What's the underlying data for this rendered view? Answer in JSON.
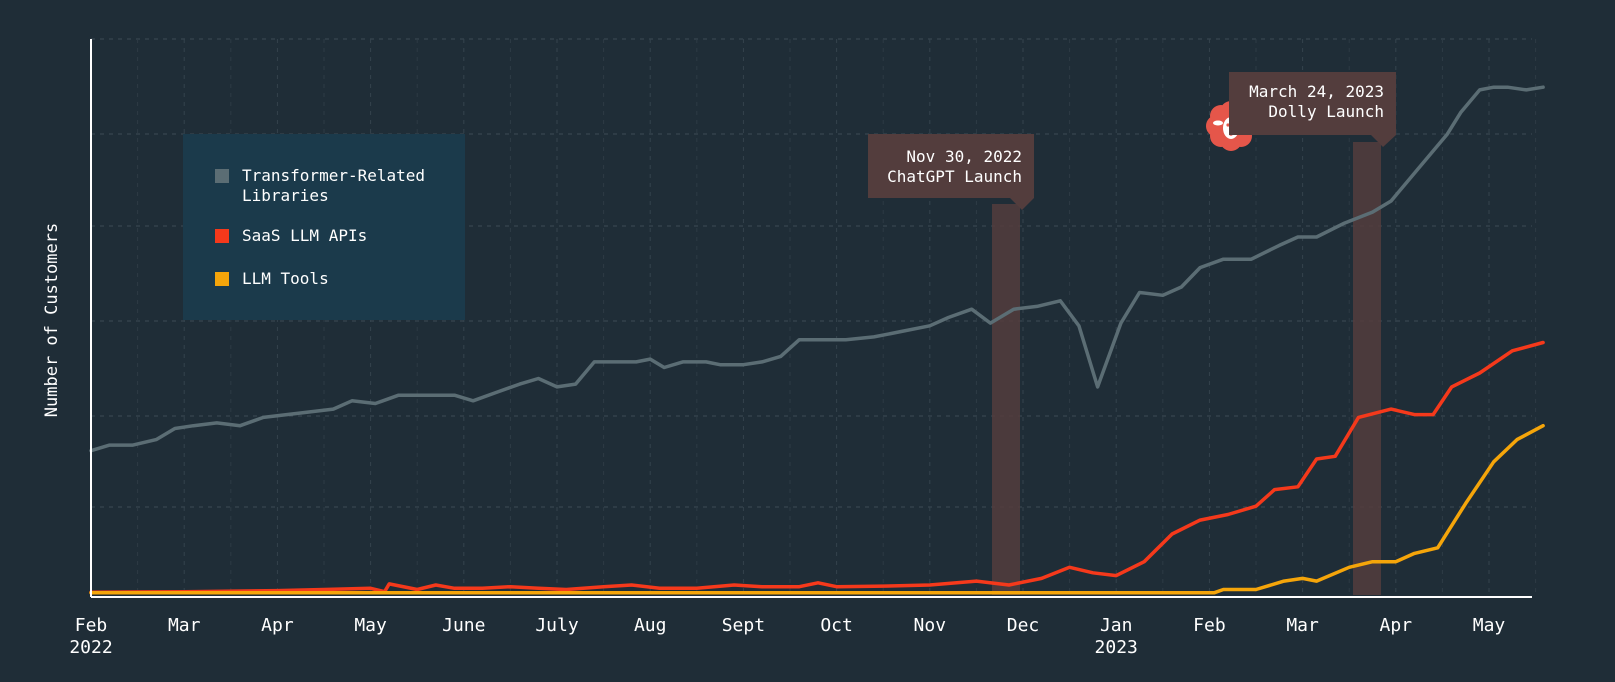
{
  "chart_data": {
    "type": "line",
    "ylabel": "Number of Customers",
    "xlabel": "",
    "x_ticks": [
      {
        "label": "Feb",
        "sub": "2022",
        "month": 0
      },
      {
        "label": "Mar",
        "sub": "",
        "month": 1
      },
      {
        "label": "Apr",
        "sub": "",
        "month": 2
      },
      {
        "label": "May",
        "sub": "",
        "month": 3
      },
      {
        "label": "June",
        "sub": "",
        "month": 4
      },
      {
        "label": "July",
        "sub": "",
        "month": 5
      },
      {
        "label": "Aug",
        "sub": "",
        "month": 6
      },
      {
        "label": "Sept",
        "sub": "",
        "month": 7
      },
      {
        "label": "Oct",
        "sub": "",
        "month": 8
      },
      {
        "label": "Nov",
        "sub": "",
        "month": 9
      },
      {
        "label": "Dec",
        "sub": "",
        "month": 10
      },
      {
        "label": "Jan",
        "sub": "2023",
        "month": 11
      },
      {
        "label": "Feb",
        "sub": "",
        "month": 12
      },
      {
        "label": "Mar",
        "sub": "",
        "month": 13
      },
      {
        "label": "Apr",
        "sub": "",
        "month": 14
      },
      {
        "label": "May",
        "sub": "",
        "month": 15
      }
    ],
    "x_range_months": [
      0,
      15.3
    ],
    "y_range": [
      0,
      100
    ],
    "grid": true,
    "legend_position": "top-left",
    "series": [
      {
        "name": "Transformer-Related Libraries",
        "color": "#5b6d74",
        "points": [
          [
            0,
            26
          ],
          [
            0.2,
            27
          ],
          [
            0.45,
            27
          ],
          [
            0.7,
            28
          ],
          [
            0.9,
            30
          ],
          [
            1.1,
            30.5
          ],
          [
            1.35,
            31
          ],
          [
            1.6,
            30.5
          ],
          [
            1.85,
            32
          ],
          [
            2.1,
            32.5
          ],
          [
            2.35,
            33
          ],
          [
            2.6,
            33.5
          ],
          [
            2.8,
            35
          ],
          [
            3.05,
            34.5
          ],
          [
            3.3,
            36
          ],
          [
            3.6,
            36
          ],
          [
            3.9,
            36
          ],
          [
            4.1,
            35
          ],
          [
            4.35,
            36.5
          ],
          [
            4.6,
            38
          ],
          [
            4.8,
            39
          ],
          [
            5.0,
            37.5
          ],
          [
            5.2,
            38
          ],
          [
            5.4,
            42
          ],
          [
            5.6,
            42
          ],
          [
            5.85,
            42
          ],
          [
            6.0,
            42.5
          ],
          [
            6.15,
            41
          ],
          [
            6.35,
            42
          ],
          [
            6.6,
            42
          ],
          [
            6.75,
            41.5
          ],
          [
            7.0,
            41.5
          ],
          [
            7.2,
            42
          ],
          [
            7.4,
            43
          ],
          [
            7.6,
            46
          ],
          [
            7.8,
            46
          ],
          [
            8.1,
            46
          ],
          [
            8.4,
            46.5
          ],
          [
            8.7,
            47.5
          ],
          [
            9.0,
            48.5
          ],
          [
            9.2,
            50
          ],
          [
            9.45,
            51.5
          ],
          [
            9.65,
            49
          ],
          [
            9.9,
            51.5
          ],
          [
            10.15,
            52
          ],
          [
            10.4,
            53
          ],
          [
            10.6,
            48.5
          ],
          [
            10.8,
            37.5
          ],
          [
            11.05,
            49
          ],
          [
            11.25,
            54.5
          ],
          [
            11.5,
            54
          ],
          [
            11.7,
            55.5
          ],
          [
            11.9,
            59
          ],
          [
            12.15,
            60.5
          ],
          [
            12.45,
            60.5
          ],
          [
            12.75,
            63
          ],
          [
            12.95,
            64.5
          ],
          [
            13.15,
            64.5
          ],
          [
            13.45,
            67
          ],
          [
            13.75,
            69
          ],
          [
            13.95,
            71
          ],
          [
            14.25,
            77
          ],
          [
            14.55,
            83
          ],
          [
            14.7,
            87
          ],
          [
            14.9,
            91
          ],
          [
            15.05,
            91.5
          ],
          [
            15.2,
            91.5
          ],
          [
            15.4,
            91
          ],
          [
            15.58,
            91.5
          ]
        ]
      },
      {
        "name": "SaaS LLM APIs",
        "color": "#f5391b",
        "points": [
          [
            0,
            0.5
          ],
          [
            1,
            0.6
          ],
          [
            2,
            0.8
          ],
          [
            2.5,
            1
          ],
          [
            3,
            1.2
          ],
          [
            3.15,
            0.6
          ],
          [
            3.2,
            2
          ],
          [
            3.5,
            1
          ],
          [
            3.7,
            1.8
          ],
          [
            3.9,
            1.2
          ],
          [
            4.2,
            1.2
          ],
          [
            4.5,
            1.5
          ],
          [
            4.8,
            1.2
          ],
          [
            5.1,
            1
          ],
          [
            5.5,
            1.5
          ],
          [
            5.8,
            1.8
          ],
          [
            6.1,
            1.2
          ],
          [
            6.5,
            1.2
          ],
          [
            6.9,
            1.8
          ],
          [
            7.2,
            1.5
          ],
          [
            7.6,
            1.5
          ],
          [
            7.8,
            2.2
          ],
          [
            8.0,
            1.5
          ],
          [
            8.5,
            1.6
          ],
          [
            9.0,
            1.8
          ],
          [
            9.5,
            2.5
          ],
          [
            9.85,
            1.8
          ],
          [
            10.2,
            3
          ],
          [
            10.5,
            5
          ],
          [
            10.75,
            4
          ],
          [
            11.0,
            3.5
          ],
          [
            11.3,
            6
          ],
          [
            11.6,
            11
          ],
          [
            11.9,
            13.5
          ],
          [
            12.2,
            14.5
          ],
          [
            12.5,
            16
          ],
          [
            12.7,
            19
          ],
          [
            12.95,
            19.5
          ],
          [
            13.15,
            24.5
          ],
          [
            13.35,
            25
          ],
          [
            13.6,
            32
          ],
          [
            13.95,
            33.5
          ],
          [
            14.2,
            32.5
          ],
          [
            14.4,
            32.5
          ],
          [
            14.6,
            37.5
          ],
          [
            14.9,
            40
          ],
          [
            15.25,
            44
          ],
          [
            15.58,
            45.5
          ]
        ]
      },
      {
        "name": "LLM Tools",
        "color": "#f5a50a",
        "points": [
          [
            0,
            0.4
          ],
          [
            2,
            0.4
          ],
          [
            4,
            0.4
          ],
          [
            6,
            0.4
          ],
          [
            8,
            0.4
          ],
          [
            10,
            0.4
          ],
          [
            11.5,
            0.4
          ],
          [
            12.05,
            0.4
          ],
          [
            12.15,
            1
          ],
          [
            12.5,
            1
          ],
          [
            12.8,
            2.5
          ],
          [
            13.0,
            3
          ],
          [
            13.15,
            2.5
          ],
          [
            13.5,
            5
          ],
          [
            13.75,
            6
          ],
          [
            14.0,
            6
          ],
          [
            14.2,
            7.5
          ],
          [
            14.45,
            8.5
          ],
          [
            14.75,
            16.5
          ],
          [
            15.05,
            24
          ],
          [
            15.3,
            28
          ],
          [
            15.58,
            30.5
          ]
        ]
      }
    ],
    "annotations": [
      {
        "date": "Nov 30, 2022",
        "label": "ChatGPT Launch",
        "month": 10.0
      },
      {
        "date": "March 24, 2023",
        "label": "Dolly Launch",
        "month": 13.77
      }
    ]
  },
  "legend": {
    "items": [
      {
        "label": "Transformer-Related Libraries",
        "color": "#5b6d74"
      },
      {
        "label": "SaaS LLM APIs",
        "color": "#f5391b"
      },
      {
        "label": "LLM Tools",
        "color": "#f5a50a"
      }
    ]
  },
  "icons": {
    "dolly": "sheep-icon"
  },
  "colors": {
    "background": "#1f2d37",
    "annotation": "#533d3d",
    "legend_bg": "#1b3a4b",
    "sheep": "#e5564a"
  }
}
